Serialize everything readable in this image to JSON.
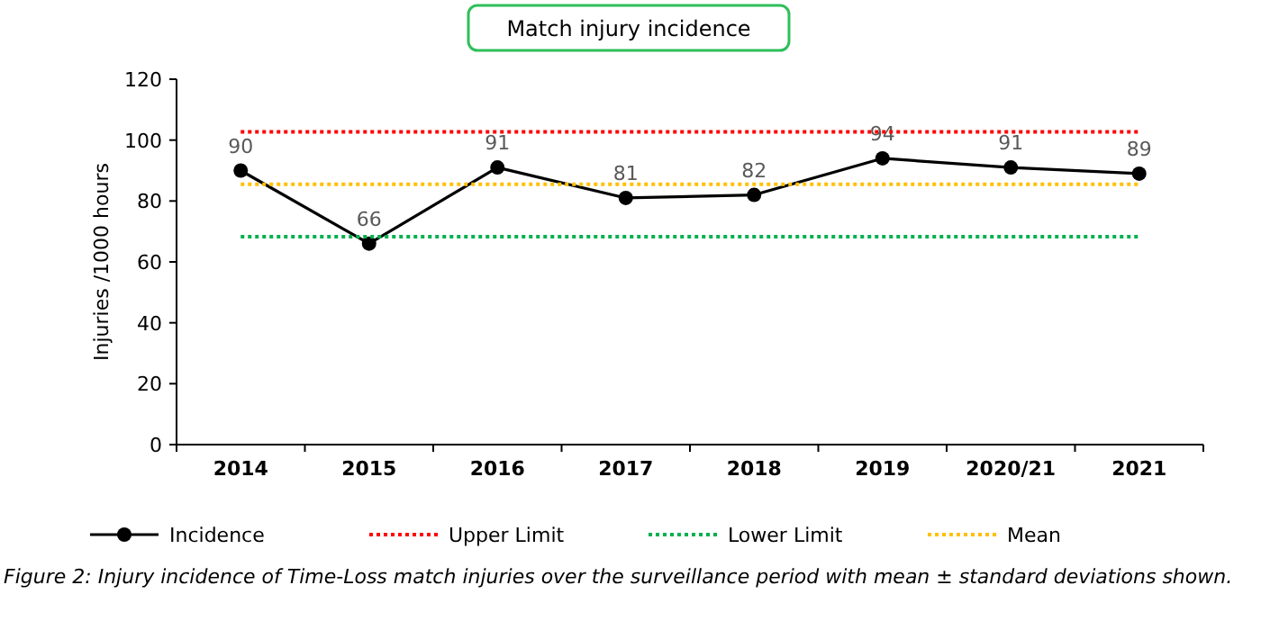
{
  "chart_data": {
    "type": "line",
    "title": "Match injury incidence",
    "ylabel": "Injuries /1000 hours",
    "categories": [
      "2014",
      "2015",
      "2016",
      "2017",
      "2018",
      "2019",
      "2020/21",
      "2021"
    ],
    "series": [
      {
        "name": "Incidence",
        "color": "#000000",
        "marker": "circle",
        "line_style": "solid",
        "values": [
          90,
          66,
          91,
          81,
          82,
          94,
          91,
          89
        ],
        "value_labels": [
          "90",
          "66",
          "91",
          "81",
          "82",
          "94",
          "91",
          "89"
        ]
      },
      {
        "name": "Upper Limit",
        "color": "#ff0000",
        "marker": "none",
        "line_style": "dotted",
        "values": [
          102.7,
          102.7,
          102.7,
          102.7,
          102.7,
          102.7,
          102.7,
          102.7
        ]
      },
      {
        "name": "Lower Limit",
        "color": "#00b050",
        "marker": "none",
        "line_style": "dotted",
        "values": [
          68.3,
          68.3,
          68.3,
          68.3,
          68.3,
          68.3,
          68.3,
          68.3
        ]
      },
      {
        "name": "Mean",
        "color": "#ffc000",
        "marker": "none",
        "line_style": "dotted",
        "values": [
          85.5,
          85.5,
          85.5,
          85.5,
          85.5,
          85.5,
          85.5,
          85.5
        ]
      }
    ],
    "ylim": [
      0,
      120
    ],
    "yticks": [
      0,
      20,
      40,
      60,
      80,
      100,
      120
    ],
    "grid": false,
    "legend": "bottom",
    "annotations": [
      "Figure 2: Injury incidence of Time-Loss match injuries over the surveillance period with mean ± standard deviations shown."
    ]
  }
}
